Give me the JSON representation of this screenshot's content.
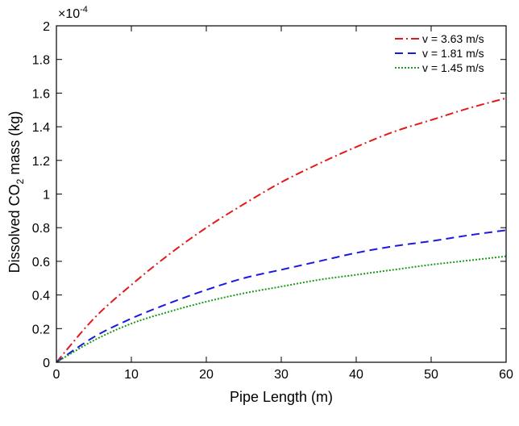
{
  "chart_data": {
    "type": "line",
    "xlabel": "Pipe Length (m)",
    "ylabel": {
      "parts": [
        {
          "text": "Dissolved CO",
          "sub": false
        },
        {
          "text": "2",
          "sub": true
        },
        {
          "text": " mass (kg)",
          "sub": false
        }
      ]
    },
    "multiplier": {
      "base": "×10",
      "exponent": "-4"
    },
    "xlim": [
      0,
      60
    ],
    "ylim": [
      0,
      2
    ],
    "y_scale_factor": 0.0001,
    "x_ticks": [
      "0",
      "10",
      "20",
      "30",
      "40",
      "50",
      "60"
    ],
    "y_ticks": [
      "0",
      "0.2",
      "0.4",
      "0.6",
      "0.8",
      "1",
      "1.2",
      "1.4",
      "1.6",
      "1.8",
      "2"
    ],
    "grid": false,
    "legend_position": "top-right",
    "x": [
      0,
      5,
      10,
      15,
      20,
      25,
      30,
      35,
      40,
      45,
      50,
      55,
      60
    ],
    "series": [
      {
        "name": "v = 3.63 m/s",
        "color": "#e41a1a",
        "dash": "dash-dot",
        "values": [
          0,
          0.26,
          0.46,
          0.64,
          0.8,
          0.94,
          1.07,
          1.18,
          1.28,
          1.37,
          1.44,
          1.51,
          1.57
        ]
      },
      {
        "name": "v = 1.81 m/s",
        "color": "#1a1ae4",
        "dash": "dashed",
        "values": [
          0,
          0.15,
          0.26,
          0.35,
          0.43,
          0.5,
          0.55,
          0.6,
          0.65,
          0.69,
          0.72,
          0.755,
          0.785
        ]
      },
      {
        "name": "v = 1.45 m/s",
        "color": "#1a9a1a",
        "dash": "dotted",
        "values": [
          0,
          0.13,
          0.23,
          0.3,
          0.36,
          0.41,
          0.45,
          0.49,
          0.52,
          0.55,
          0.58,
          0.605,
          0.63
        ]
      }
    ]
  }
}
